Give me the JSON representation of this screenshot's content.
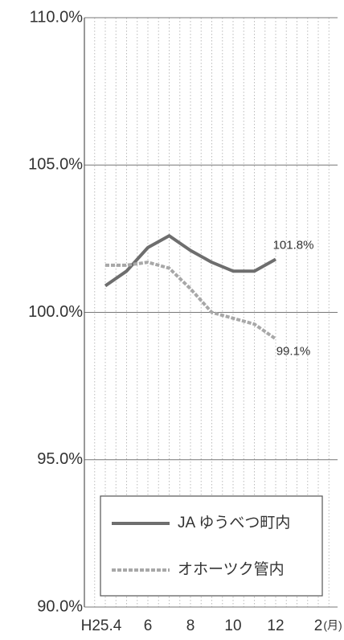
{
  "chart_data": {
    "type": "line",
    "categories": [
      "H25.4",
      null,
      "6",
      null,
      "8",
      null,
      "10",
      null,
      "12",
      null,
      "2"
    ],
    "xlabel": "(月)",
    "series": [
      {
        "name": "JA ゆうべつ町内",
        "color": "#6e6e6e",
        "dashed": false,
        "values": [
          100.9,
          101.4,
          102.2,
          102.6,
          102.1,
          101.7,
          101.4,
          101.4,
          101.8,
          null,
          null
        ],
        "value_labels": [
          null,
          null,
          null,
          null,
          null,
          null,
          null,
          null,
          "101.8%",
          null,
          null
        ]
      },
      {
        "name": "オホーツク管内",
        "color": "#a8a8a8",
        "dashed": true,
        "values": [
          101.6,
          101.6,
          101.7,
          101.5,
          100.8,
          100.0,
          99.8,
          99.6,
          99.1,
          null,
          null
        ],
        "value_labels": [
          null,
          null,
          null,
          null,
          null,
          null,
          null,
          null,
          "99.1%",
          null,
          null
        ]
      }
    ],
    "ylim": [
      90,
      110
    ],
    "yticks": [
      {
        "value": 90,
        "label": "90.0%"
      },
      {
        "value": 95,
        "label": "95.0%"
      },
      {
        "value": 100,
        "label": "100.0%"
      },
      {
        "value": 105,
        "label": "105.0%"
      },
      {
        "value": 110,
        "label": "110.0%"
      }
    ],
    "grid": true,
    "legend": "bottom"
  }
}
